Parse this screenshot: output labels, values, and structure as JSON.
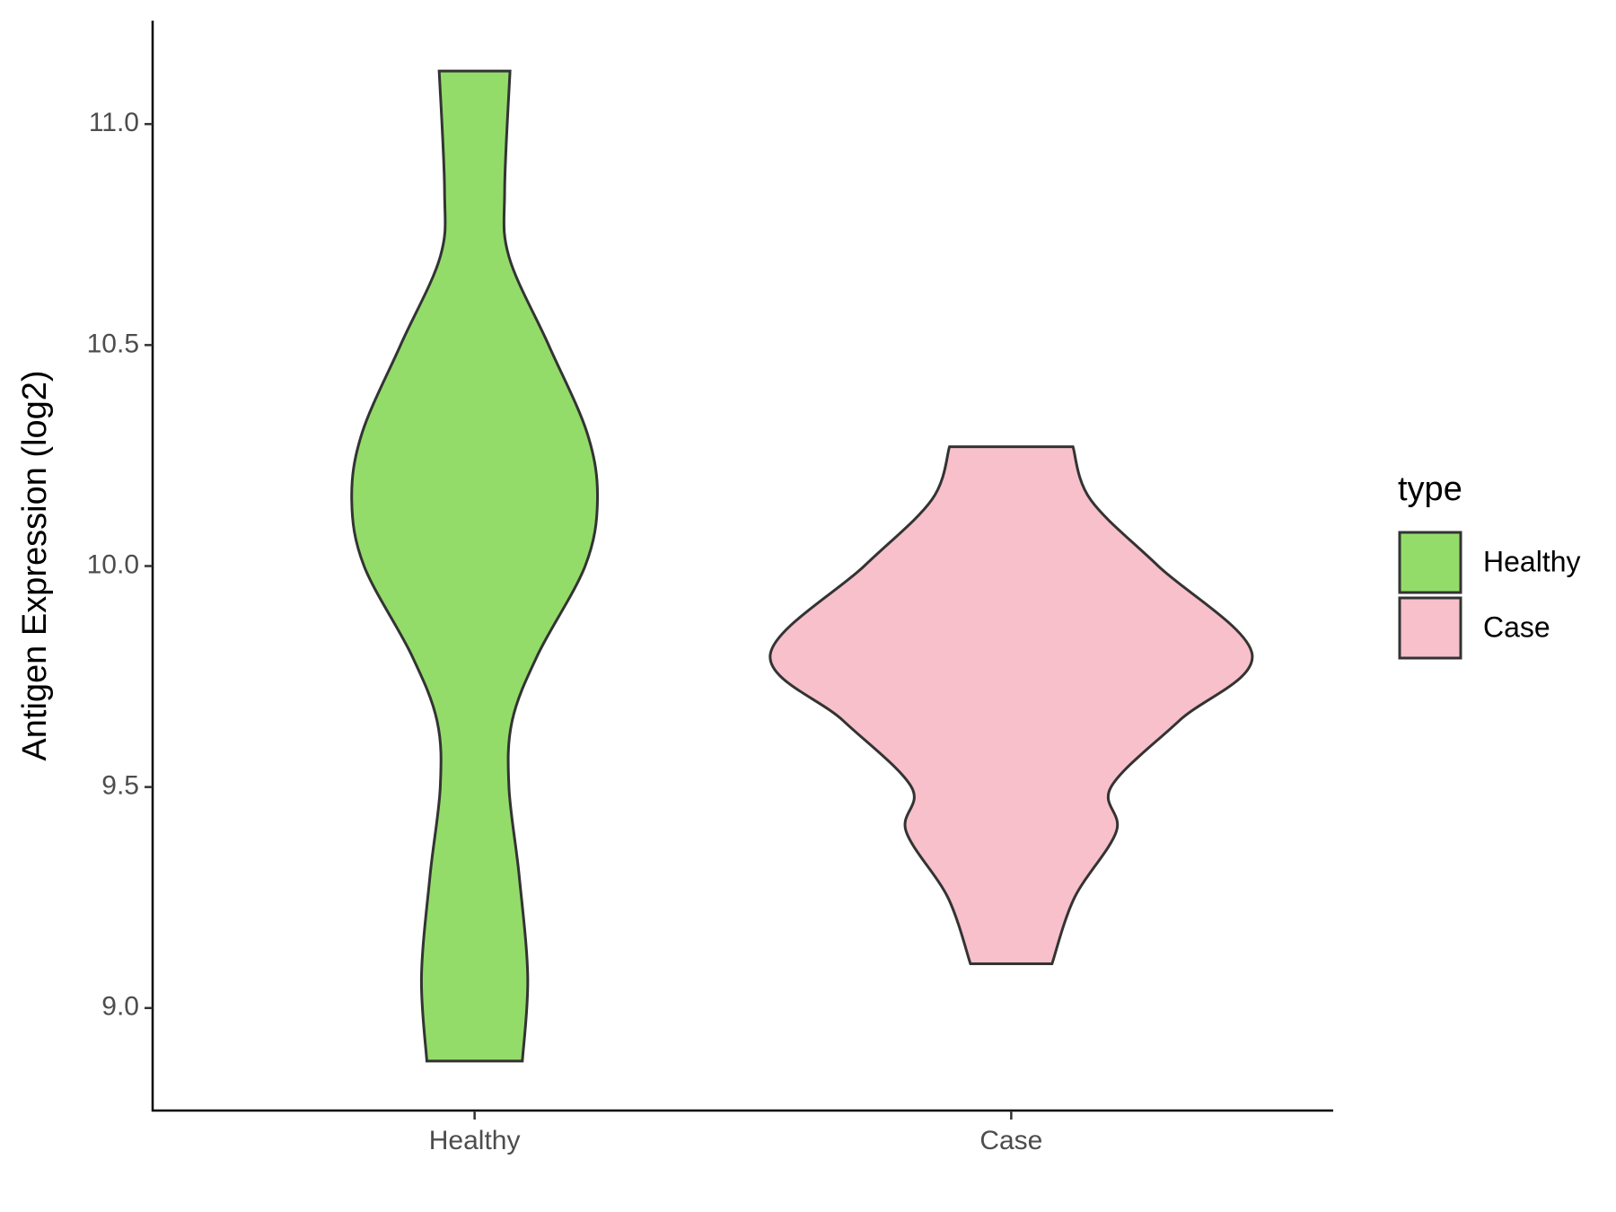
{
  "chart_data": {
    "type": "violin",
    "y_label": "Antigen Expression (log2)",
    "categories": [
      "Healthy",
      "Case"
    ],
    "ylim": [
      8.768,
      11.234
    ],
    "yticks": [
      {
        "value": 9,
        "label": "9.0"
      },
      9.5,
      {
        "value": 10,
        "label": "10.0"
      },
      10.5,
      {
        "value": 11,
        "label": "11.0"
      }
    ],
    "legend_title": "type",
    "legend_position": "right",
    "violins": [
      {
        "name": "Healthy",
        "color": "#93dc6a",
        "y": [
          11.12,
          10.85,
          10.7,
          10.5,
          10.3,
          10.15,
          10.0,
          9.8,
          9.65,
          9.5,
          9.3,
          9.07,
          8.88
        ],
        "half_width": [
          0.066,
          0.056,
          0.064,
          0.138,
          0.21,
          0.229,
          0.206,
          0.118,
          0.07,
          0.064,
          0.083,
          0.099,
          0.089
        ]
      },
      {
        "name": "Case",
        "color": "#f7c0cb",
        "y": [
          10.27,
          10.15,
          10.0,
          9.8,
          9.65,
          9.5,
          9.4,
          9.25,
          9.1
        ],
        "half_width": [
          0.115,
          0.148,
          0.274,
          0.449,
          0.313,
          0.186,
          0.196,
          0.118,
          0.076
        ]
      }
    ]
  }
}
